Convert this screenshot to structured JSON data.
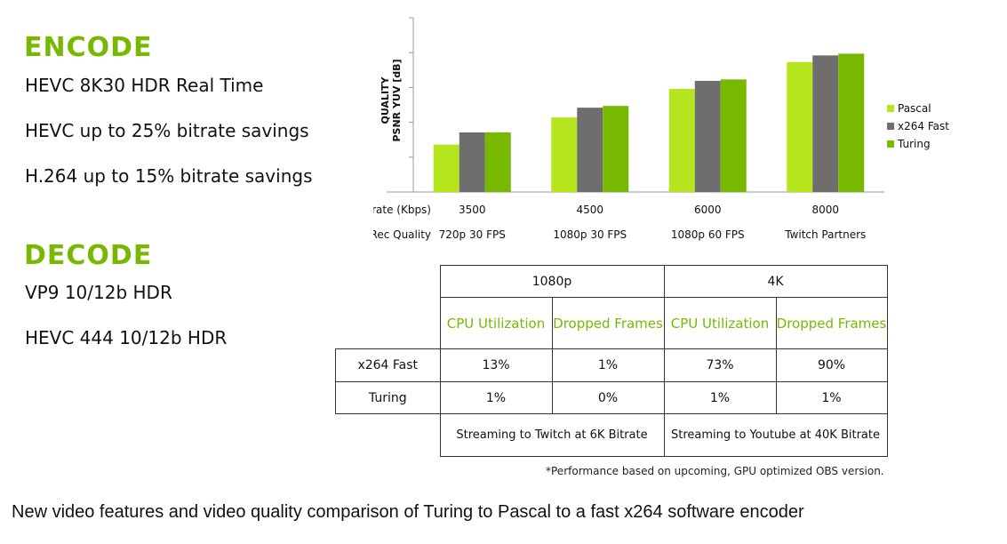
{
  "encode": {
    "heading": "ENCODE",
    "items": [
      "HEVC 8K30 HDR Real Time",
      "HEVC up to 25% bitrate savings",
      "H.264 up to 15% bitrate savings"
    ]
  },
  "decode": {
    "heading": "DECODE",
    "items": [
      "VP9 10/12b HDR",
      "HEVC 444 10/12b HDR"
    ]
  },
  "chart_data": {
    "type": "bar",
    "ylabel": "QUALITY PSNR YUV [dB]",
    "row_labels": [
      "Bitrate (Kbps)",
      "Twitch Rec Quality"
    ],
    "categories": [
      "3500",
      "4500",
      "6000",
      "8000"
    ],
    "quality_labels": [
      "720p 30 FPS",
      "1080p 30 FPS",
      "1080p 60 FPS",
      "Twitch Partners"
    ],
    "ylim": [
      0,
      5
    ],
    "ytick_labels_shown": false,
    "grid": false,
    "legend_position": "right",
    "series": [
      {
        "name": "Pascal",
        "color": "#b5e61d",
        "values": [
          1.36,
          2.14,
          2.96,
          3.73
        ]
      },
      {
        "name": "x264 Fast",
        "color": "#6e6e6e",
        "values": [
          1.71,
          2.42,
          3.19,
          3.92
        ]
      },
      {
        "name": "Turing",
        "color": "#76b900",
        "values": [
          1.71,
          2.47,
          3.23,
          3.97
        ]
      }
    ]
  },
  "table": {
    "groups": [
      "1080p",
      "4K"
    ],
    "subheaders": [
      "CPU Utilization",
      "Dropped Frames",
      "CPU Utilization",
      "Dropped Frames"
    ],
    "rows": [
      {
        "label": "x264 Fast",
        "values": [
          "13%",
          "1%",
          "73%",
          "90%"
        ]
      },
      {
        "label": "Turing",
        "values": [
          "1%",
          "0%",
          "1%",
          "1%"
        ]
      }
    ],
    "notes": [
      "Streaming to Twitch at 6K Bitrate",
      "Streaming to Youtube at 40K Bitrate"
    ]
  },
  "footnote": "*Performance based on upcoming, GPU optimized OBS version.",
  "caption": "New video features and video quality comparison of Turing to Pascal to a fast x264 software encoder"
}
